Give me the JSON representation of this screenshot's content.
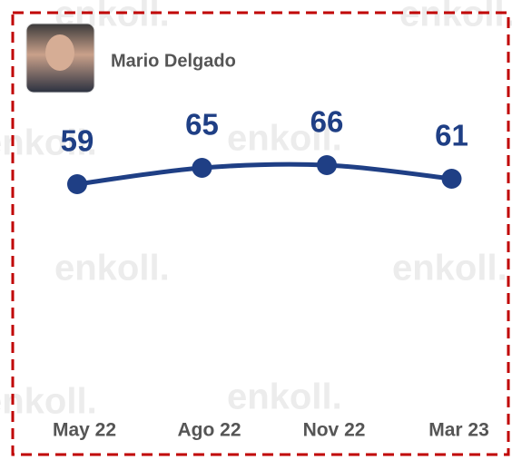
{
  "chart_data": {
    "type": "line",
    "title": "Mario Delgado",
    "watermark": "enkoll.",
    "categories": [
      "May 22",
      "Ago 22",
      "Nov 22",
      "Mar 23"
    ],
    "values": [
      59,
      65,
      66,
      61
    ],
    "color": "#1f3f85"
  }
}
